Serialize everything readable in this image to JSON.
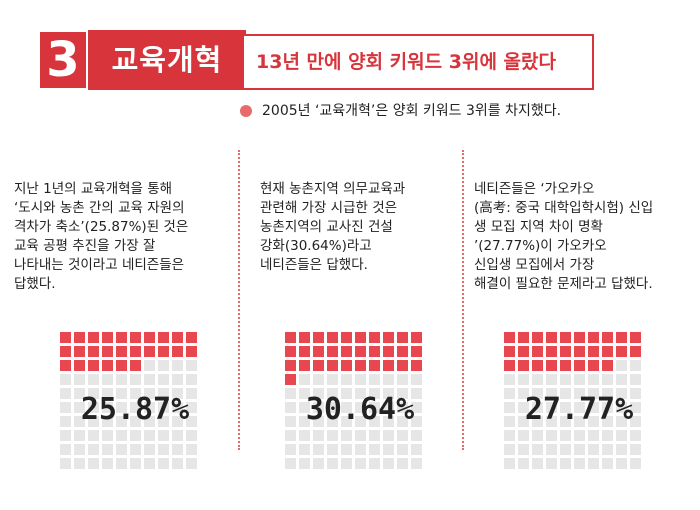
{
  "header": {
    "number": "3",
    "title": "교육개혁",
    "headline": "13년 만에 양회 키워드 3위에 올랐다"
  },
  "summary": "2005년 ‘교육개혁’은 양회 키워드 3위를 차지했다.",
  "columns": [
    {
      "text": "지난 1년의 교육개혁을 통해\n‘도시와 농촌 간의 교육 자원의\n격차가 축소’(25.87%)된 것은\n교육 공평 추진을 가장 잘\n나타내는 것이라고 네티즌들은\n답했다.",
      "percent": "25.87%"
    },
    {
      "text": "현재 농촌지역 의무교육과\n관련해 가장 시급한 것은\n농촌지역의 교사진 건설\n강화(30.64%)라고\n네티즌들은 답했다.",
      "percent": "30.64%"
    },
    {
      "text": "네티즌들은 ‘가오카오\n(高考: 중국 대학입학시험) 신입\n생 모집 지역 차이 명확\n’(27.77%)이 가오카오\n신입생 모집에서 가장\n해결이 필요한 문제라고 답했다.",
      "percent": "27.77%"
    }
  ],
  "chart_data": {
    "type": "waffle",
    "grid": {
      "rows": 10,
      "cols": 10
    },
    "series": [
      {
        "label": "25.87%",
        "value": 25.87
      },
      {
        "label": "30.64%",
        "value": 30.64
      },
      {
        "label": "27.77%",
        "value": 27.77
      }
    ],
    "colors": {
      "filled": "#e8474f",
      "empty": "#e6e6e6"
    }
  },
  "colors": {
    "accent": "#d8343c",
    "bullet": "#e86b6b"
  }
}
